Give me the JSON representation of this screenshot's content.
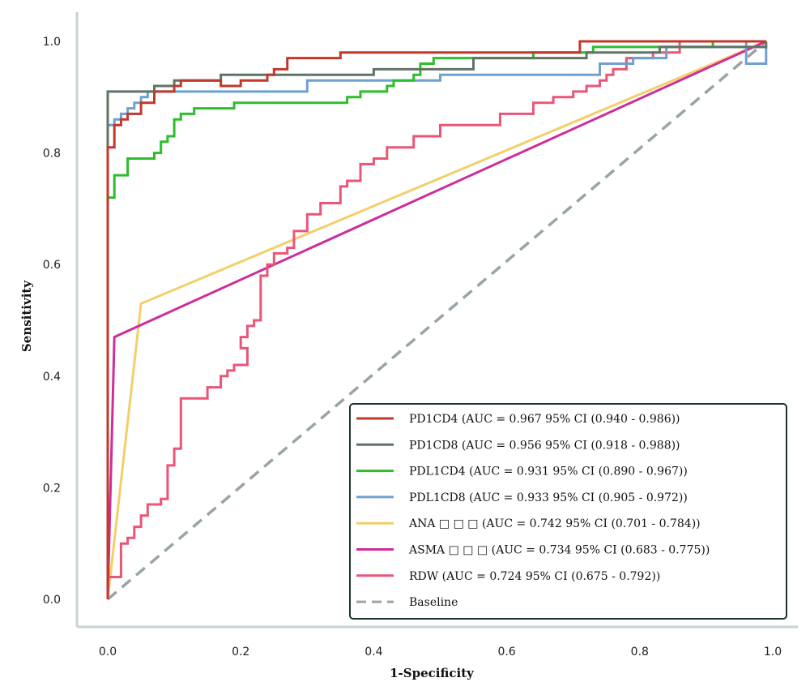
{
  "chart_data": {
    "type": "line",
    "title": "",
    "xlabel": "1-Specificity",
    "ylabel": "Sensitivity",
    "xlim": [
      0,
      1
    ],
    "ylim": [
      0,
      1
    ],
    "x_ticks": [
      "0.0",
      "0.2",
      "0.4",
      "0.6",
      "0.8",
      "1.0"
    ],
    "y_ticks": [
      "0.0",
      "0.2",
      "0.4",
      "0.6",
      "0.8",
      "1.0"
    ],
    "grid": false,
    "legend_position": "bottom-right",
    "series": [
      {
        "name": "PD1CD4 (AUC = 0.967 95% CI (0.940 - 0.986))",
        "color": "#c0392b",
        "dashed": false,
        "points": [
          [
            0,
            0
          ],
          [
            0,
            0.81
          ],
          [
            0.01,
            0.81
          ],
          [
            0.01,
            0.85
          ],
          [
            0.02,
            0.85
          ],
          [
            0.02,
            0.86
          ],
          [
            0.03,
            0.86
          ],
          [
            0.03,
            0.87
          ],
          [
            0.05,
            0.87
          ],
          [
            0.05,
            0.89
          ],
          [
            0.07,
            0.89
          ],
          [
            0.07,
            0.91
          ],
          [
            0.1,
            0.91
          ],
          [
            0.1,
            0.92
          ],
          [
            0.11,
            0.92
          ],
          [
            0.11,
            0.93
          ],
          [
            0.17,
            0.93
          ],
          [
            0.17,
            0.92
          ],
          [
            0.2,
            0.92
          ],
          [
            0.2,
            0.93
          ],
          [
            0.24,
            0.93
          ],
          [
            0.24,
            0.94
          ],
          [
            0.25,
            0.94
          ],
          [
            0.25,
            0.95
          ],
          [
            0.27,
            0.95
          ],
          [
            0.27,
            0.97
          ],
          [
            0.35,
            0.97
          ],
          [
            0.35,
            0.98
          ],
          [
            0.71,
            0.98
          ],
          [
            0.71,
            1.0
          ],
          [
            0.99,
            1.0
          ]
        ]
      },
      {
        "name": "PD1CD8 (AUC = 0.956 95% CI (0.918 - 0.988))",
        "color": "#607466",
        "dashed": false,
        "points": [
          [
            0,
            0
          ],
          [
            0,
            0.91
          ],
          [
            0.07,
            0.91
          ],
          [
            0.07,
            0.92
          ],
          [
            0.1,
            0.92
          ],
          [
            0.1,
            0.93
          ],
          [
            0.17,
            0.93
          ],
          [
            0.17,
            0.94
          ],
          [
            0.4,
            0.94
          ],
          [
            0.4,
            0.95
          ],
          [
            0.55,
            0.95
          ],
          [
            0.55,
            0.97
          ],
          [
            0.72,
            0.97
          ],
          [
            0.72,
            0.98
          ],
          [
            0.83,
            0.98
          ],
          [
            0.83,
            0.99
          ],
          [
            0.99,
            0.99
          ],
          [
            0.99,
            1.0
          ]
        ]
      },
      {
        "name": "PDL1CD4 (AUC = 0.931 95% CI (0.890 - 0.967))",
        "color": "#2ebd2e",
        "dashed": false,
        "points": [
          [
            0,
            0
          ],
          [
            0,
            0.72
          ],
          [
            0.01,
            0.72
          ],
          [
            0.01,
            0.76
          ],
          [
            0.03,
            0.76
          ],
          [
            0.03,
            0.79
          ],
          [
            0.07,
            0.79
          ],
          [
            0.07,
            0.8
          ],
          [
            0.08,
            0.8
          ],
          [
            0.08,
            0.82
          ],
          [
            0.09,
            0.82
          ],
          [
            0.09,
            0.83
          ],
          [
            0.1,
            0.83
          ],
          [
            0.1,
            0.86
          ],
          [
            0.11,
            0.86
          ],
          [
            0.11,
            0.87
          ],
          [
            0.13,
            0.87
          ],
          [
            0.13,
            0.88
          ],
          [
            0.19,
            0.88
          ],
          [
            0.19,
            0.89
          ],
          [
            0.36,
            0.89
          ],
          [
            0.36,
            0.9
          ],
          [
            0.38,
            0.9
          ],
          [
            0.38,
            0.91
          ],
          [
            0.42,
            0.91
          ],
          [
            0.42,
            0.92
          ],
          [
            0.43,
            0.92
          ],
          [
            0.43,
            0.93
          ],
          [
            0.46,
            0.93
          ],
          [
            0.46,
            0.94
          ],
          [
            0.47,
            0.94
          ],
          [
            0.47,
            0.96
          ],
          [
            0.49,
            0.96
          ],
          [
            0.49,
            0.97
          ],
          [
            0.64,
            0.97
          ],
          [
            0.64,
            0.98
          ],
          [
            0.73,
            0.98
          ],
          [
            0.73,
            0.99
          ],
          [
            0.91,
            0.99
          ],
          [
            0.91,
            1.0
          ],
          [
            0.99,
            1.0
          ]
        ]
      },
      {
        "name": "PDL1CD8 (AUC = 0.933 95% CI (0.905 - 0.972))",
        "color": "#6fa0d0",
        "dashed": false,
        "points": [
          [
            0,
            0
          ],
          [
            0,
            0.85
          ],
          [
            0.01,
            0.85
          ],
          [
            0.01,
            0.86
          ],
          [
            0.02,
            0.86
          ],
          [
            0.02,
            0.87
          ],
          [
            0.03,
            0.87
          ],
          [
            0.03,
            0.88
          ],
          [
            0.04,
            0.88
          ],
          [
            0.04,
            0.89
          ],
          [
            0.05,
            0.89
          ],
          [
            0.05,
            0.9
          ],
          [
            0.06,
            0.9
          ],
          [
            0.06,
            0.91
          ],
          [
            0.3,
            0.91
          ],
          [
            0.3,
            0.93
          ],
          [
            0.5,
            0.93
          ],
          [
            0.5,
            0.94
          ],
          [
            0.74,
            0.94
          ],
          [
            0.74,
            0.96
          ],
          [
            0.79,
            0.96
          ],
          [
            0.79,
            0.97
          ],
          [
            0.84,
            0.97
          ],
          [
            0.84,
            0.99
          ],
          [
            0.99,
            0.99
          ],
          [
            0.99,
            0.96
          ],
          [
            0.96,
            0.96
          ],
          [
            0.96,
            1.0
          ],
          [
            0.99,
            1.0
          ]
        ]
      },
      {
        "name": "ANA   □  □  □ (AUC = 0.742 95% CI (0.701 - 0.784))",
        "color": "#f3cf6b",
        "dashed": false,
        "points": [
          [
            0,
            0
          ],
          [
            0.05,
            0.53
          ],
          [
            0.99,
            1.0
          ]
        ]
      },
      {
        "name": "ASMA   □  □  □ (AUC = 0.734 95% CI (0.683 - 0.775))",
        "color": "#cc2e9b",
        "dashed": false,
        "points": [
          [
            0,
            0
          ],
          [
            0.01,
            0.47
          ],
          [
            0.99,
            1.0
          ]
        ]
      },
      {
        "name": "RDW (AUC = 0.724 95% CI (0.675 - 0.792))",
        "color": "#ea5678",
        "dashed": false,
        "points": [
          [
            0,
            0
          ],
          [
            0,
            0.04
          ],
          [
            0.02,
            0.04
          ],
          [
            0.02,
            0.1
          ],
          [
            0.03,
            0.1
          ],
          [
            0.03,
            0.11
          ],
          [
            0.04,
            0.11
          ],
          [
            0.04,
            0.13
          ],
          [
            0.05,
            0.13
          ],
          [
            0.05,
            0.15
          ],
          [
            0.06,
            0.15
          ],
          [
            0.06,
            0.17
          ],
          [
            0.08,
            0.17
          ],
          [
            0.08,
            0.18
          ],
          [
            0.09,
            0.18
          ],
          [
            0.09,
            0.24
          ],
          [
            0.1,
            0.24
          ],
          [
            0.1,
            0.27
          ],
          [
            0.11,
            0.27
          ],
          [
            0.11,
            0.36
          ],
          [
            0.15,
            0.36
          ],
          [
            0.15,
            0.38
          ],
          [
            0.17,
            0.38
          ],
          [
            0.17,
            0.4
          ],
          [
            0.18,
            0.4
          ],
          [
            0.18,
            0.41
          ],
          [
            0.19,
            0.41
          ],
          [
            0.19,
            0.42
          ],
          [
            0.21,
            0.42
          ],
          [
            0.21,
            0.45
          ],
          [
            0.2,
            0.45
          ],
          [
            0.2,
            0.47
          ],
          [
            0.21,
            0.47
          ],
          [
            0.21,
            0.49
          ],
          [
            0.22,
            0.49
          ],
          [
            0.22,
            0.5
          ],
          [
            0.23,
            0.5
          ],
          [
            0.23,
            0.58
          ],
          [
            0.24,
            0.58
          ],
          [
            0.24,
            0.6
          ],
          [
            0.25,
            0.6
          ],
          [
            0.25,
            0.62
          ],
          [
            0.27,
            0.62
          ],
          [
            0.27,
            0.63
          ],
          [
            0.28,
            0.63
          ],
          [
            0.28,
            0.66
          ],
          [
            0.3,
            0.66
          ],
          [
            0.3,
            0.69
          ],
          [
            0.32,
            0.69
          ],
          [
            0.32,
            0.71
          ],
          [
            0.35,
            0.71
          ],
          [
            0.35,
            0.74
          ],
          [
            0.36,
            0.74
          ],
          [
            0.36,
            0.75
          ],
          [
            0.38,
            0.75
          ],
          [
            0.38,
            0.78
          ],
          [
            0.4,
            0.78
          ],
          [
            0.4,
            0.79
          ],
          [
            0.42,
            0.79
          ],
          [
            0.42,
            0.81
          ],
          [
            0.46,
            0.81
          ],
          [
            0.46,
            0.83
          ],
          [
            0.5,
            0.83
          ],
          [
            0.5,
            0.85
          ],
          [
            0.59,
            0.85
          ],
          [
            0.59,
            0.87
          ],
          [
            0.64,
            0.87
          ],
          [
            0.64,
            0.89
          ],
          [
            0.67,
            0.89
          ],
          [
            0.67,
            0.9
          ],
          [
            0.7,
            0.9
          ],
          [
            0.7,
            0.91
          ],
          [
            0.72,
            0.91
          ],
          [
            0.72,
            0.92
          ],
          [
            0.74,
            0.92
          ],
          [
            0.74,
            0.93
          ],
          [
            0.75,
            0.93
          ],
          [
            0.75,
            0.94
          ],
          [
            0.76,
            0.94
          ],
          [
            0.76,
            0.95
          ],
          [
            0.78,
            0.95
          ],
          [
            0.78,
            0.97
          ],
          [
            0.82,
            0.97
          ],
          [
            0.82,
            0.98
          ],
          [
            0.86,
            0.98
          ],
          [
            0.86,
            1.0
          ],
          [
            0.99,
            1.0
          ]
        ]
      },
      {
        "name": "Baseline",
        "color": "#98a5a0",
        "dashed": true,
        "points": [
          [
            0,
            0
          ],
          [
            0.99,
            1.0
          ]
        ]
      }
    ]
  },
  "colors": {
    "axis": "#c8d4cd",
    "legend_border": "#1e3330"
  }
}
